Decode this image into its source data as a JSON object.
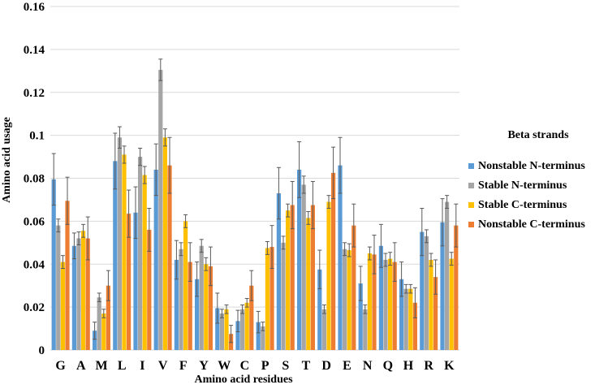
{
  "chart_data": {
    "type": "bar",
    "title": "",
    "xlabel": "Amino acid residues",
    "ylabel": "Amino acid usage",
    "ylim": [
      0,
      0.16
    ],
    "yticks": [
      "0",
      "0.02",
      "0.04",
      "0.06",
      "0.08",
      "0.1",
      "0.12",
      "0.14",
      "0.16"
    ],
    "legend_title": "Beta strands",
    "legend_position": "right",
    "grid": true,
    "categories": [
      "G",
      "A",
      "M",
      "L",
      "I",
      "V",
      "F",
      "Y",
      "W",
      "C",
      "P",
      "S",
      "T",
      "D",
      "E",
      "N",
      "Q",
      "H",
      "R",
      "K"
    ],
    "series": [
      {
        "name": "Nonstable N-terminus",
        "color": "#5B9BD5",
        "values": [
          0.0795,
          0.0485,
          0.009,
          0.088,
          0.064,
          0.084,
          0.042,
          0.033,
          0.0195,
          0.0135,
          0.013,
          0.073,
          0.084,
          0.0375,
          0.086,
          0.031,
          0.0485,
          0.033,
          0.055,
          0.0595
        ],
        "errors": [
          0.012,
          0.006,
          0.004,
          0.013,
          0.012,
          0.012,
          0.009,
          0.008,
          0.007,
          0.005,
          0.005,
          0.012,
          0.013,
          0.009,
          0.013,
          0.008,
          0.01,
          0.008,
          0.011,
          0.011
        ]
      },
      {
        "name": "Stable N-terminus",
        "color": "#A5A5A5",
        "values": [
          0.058,
          0.052,
          0.0245,
          0.099,
          0.09,
          0.1305,
          0.047,
          0.0485,
          0.017,
          0.019,
          0.011,
          0.05,
          0.077,
          0.019,
          0.047,
          0.019,
          0.042,
          0.0285,
          0.053,
          0.069
        ],
        "errors": [
          0.003,
          0.003,
          0.002,
          0.005,
          0.004,
          0.005,
          0.003,
          0.003,
          0.002,
          0.002,
          0.002,
          0.003,
          0.004,
          0.002,
          0.003,
          0.002,
          0.003,
          0.002,
          0.003,
          0.003
        ]
      },
      {
        "name": "Stable C-terminus",
        "color": "#FFC000",
        "values": [
          0.041,
          0.0555,
          0.017,
          0.091,
          0.0815,
          0.099,
          0.06,
          0.04,
          0.019,
          0.022,
          0.0475,
          0.065,
          0.0615,
          0.069,
          0.0465,
          0.045,
          0.0425,
          0.0285,
          0.042,
          0.0425
        ],
        "errors": [
          0.003,
          0.003,
          0.002,
          0.004,
          0.004,
          0.004,
          0.003,
          0.003,
          0.002,
          0.002,
          0.003,
          0.003,
          0.003,
          0.003,
          0.003,
          0.003,
          0.003,
          0.002,
          0.003,
          0.003
        ]
      },
      {
        "name": "Nonstable C-terminus",
        "color": "#ED7D31",
        "values": [
          0.0695,
          0.052,
          0.03,
          0.0635,
          0.056,
          0.086,
          0.041,
          0.039,
          0.0075,
          0.03,
          0.048,
          0.0675,
          0.0675,
          0.0825,
          0.058,
          0.0445,
          0.041,
          0.022,
          0.034,
          0.058
        ],
        "errors": [
          0.011,
          0.01,
          0.007,
          0.011,
          0.01,
          0.013,
          0.009,
          0.009,
          0.004,
          0.007,
          0.01,
          0.011,
          0.011,
          0.012,
          0.01,
          0.009,
          0.009,
          0.007,
          0.008,
          0.01
        ]
      }
    ]
  }
}
